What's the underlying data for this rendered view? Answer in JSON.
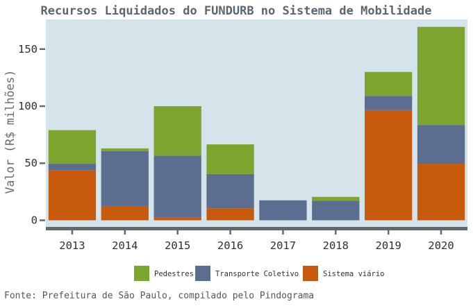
{
  "chart_data": {
    "type": "bar",
    "stacked": true,
    "title": "Recursos Liquidados do FUNDURB no Sistema de Mobilidade",
    "xlabel": "",
    "ylabel": "Valor (R$ milhões)",
    "caption": "Fonte: Prefeitura de São Paulo, compilado pelo Pindograma",
    "categories": [
      "2013",
      "2014",
      "2015",
      "2016",
      "2017",
      "2018",
      "2019",
      "2020"
    ],
    "series": [
      {
        "name": "Sistema viário",
        "color": "#c85a0d",
        "values": [
          44,
          12.5,
          2.5,
          10.5,
          0,
          0,
          96.5,
          49.5
        ]
      },
      {
        "name": "Transporte Coletivo",
        "color": "#5c6e8f",
        "values": [
          5.5,
          48,
          54,
          30,
          17.5,
          17,
          12.5,
          34
        ]
      },
      {
        "name": "Pedestres",
        "color": "#7ba52f",
        "values": [
          29.5,
          2.5,
          43.5,
          26,
          0,
          3.5,
          21,
          86
        ]
      }
    ],
    "legend_order": [
      "Pedestres",
      "Transporte Coletivo",
      "Sistema viário"
    ],
    "yticks": [
      0,
      50,
      100,
      150
    ],
    "ylim": [
      -7,
      176
    ],
    "grid": false,
    "legend_position": "bottom",
    "panel_color": "#d4e4ea",
    "axis_color": "#5e6b6e"
  }
}
